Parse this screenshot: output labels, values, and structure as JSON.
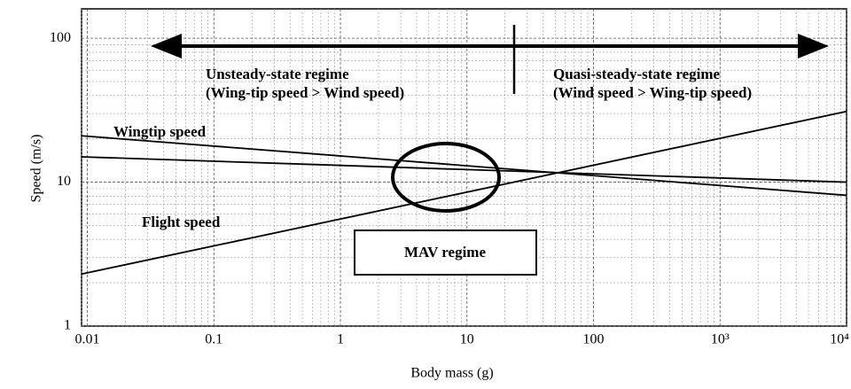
{
  "chart_data": {
    "type": "line",
    "xlabel": "Body mass (g)",
    "ylabel": "Speed (m/s)",
    "xscale": "log",
    "yscale": "log",
    "xlim": [
      0.009,
      10000
    ],
    "ylim": [
      1,
      160
    ],
    "xticks": [
      0.01,
      0.1,
      1,
      10,
      100,
      {
        "value": 1000,
        "label": "10³"
      },
      {
        "value": 10000,
        "label": "10⁴"
      }
    ],
    "yticks": [
      1,
      10,
      100
    ],
    "grid": true,
    "series": [
      {
        "name": "Wingtip speed",
        "color": "#000000",
        "x": [
          0.009,
          10000
        ],
        "values": [
          21,
          8.1
        ]
      },
      {
        "color": "#000000",
        "x": [
          0.009,
          10000
        ],
        "values": [
          15,
          10
        ]
      },
      {
        "name": "Flight speed",
        "color": "#000000",
        "x": [
          0.009,
          10000
        ],
        "values": [
          2.3,
          31
        ]
      }
    ],
    "annotations": [
      "Unsteady-state regime",
      "(Wing-tip speed > Wind speed)",
      "Quasi-steady-state regime",
      "(Wind speed > Wing-tip speed)",
      "MAV regime"
    ]
  }
}
